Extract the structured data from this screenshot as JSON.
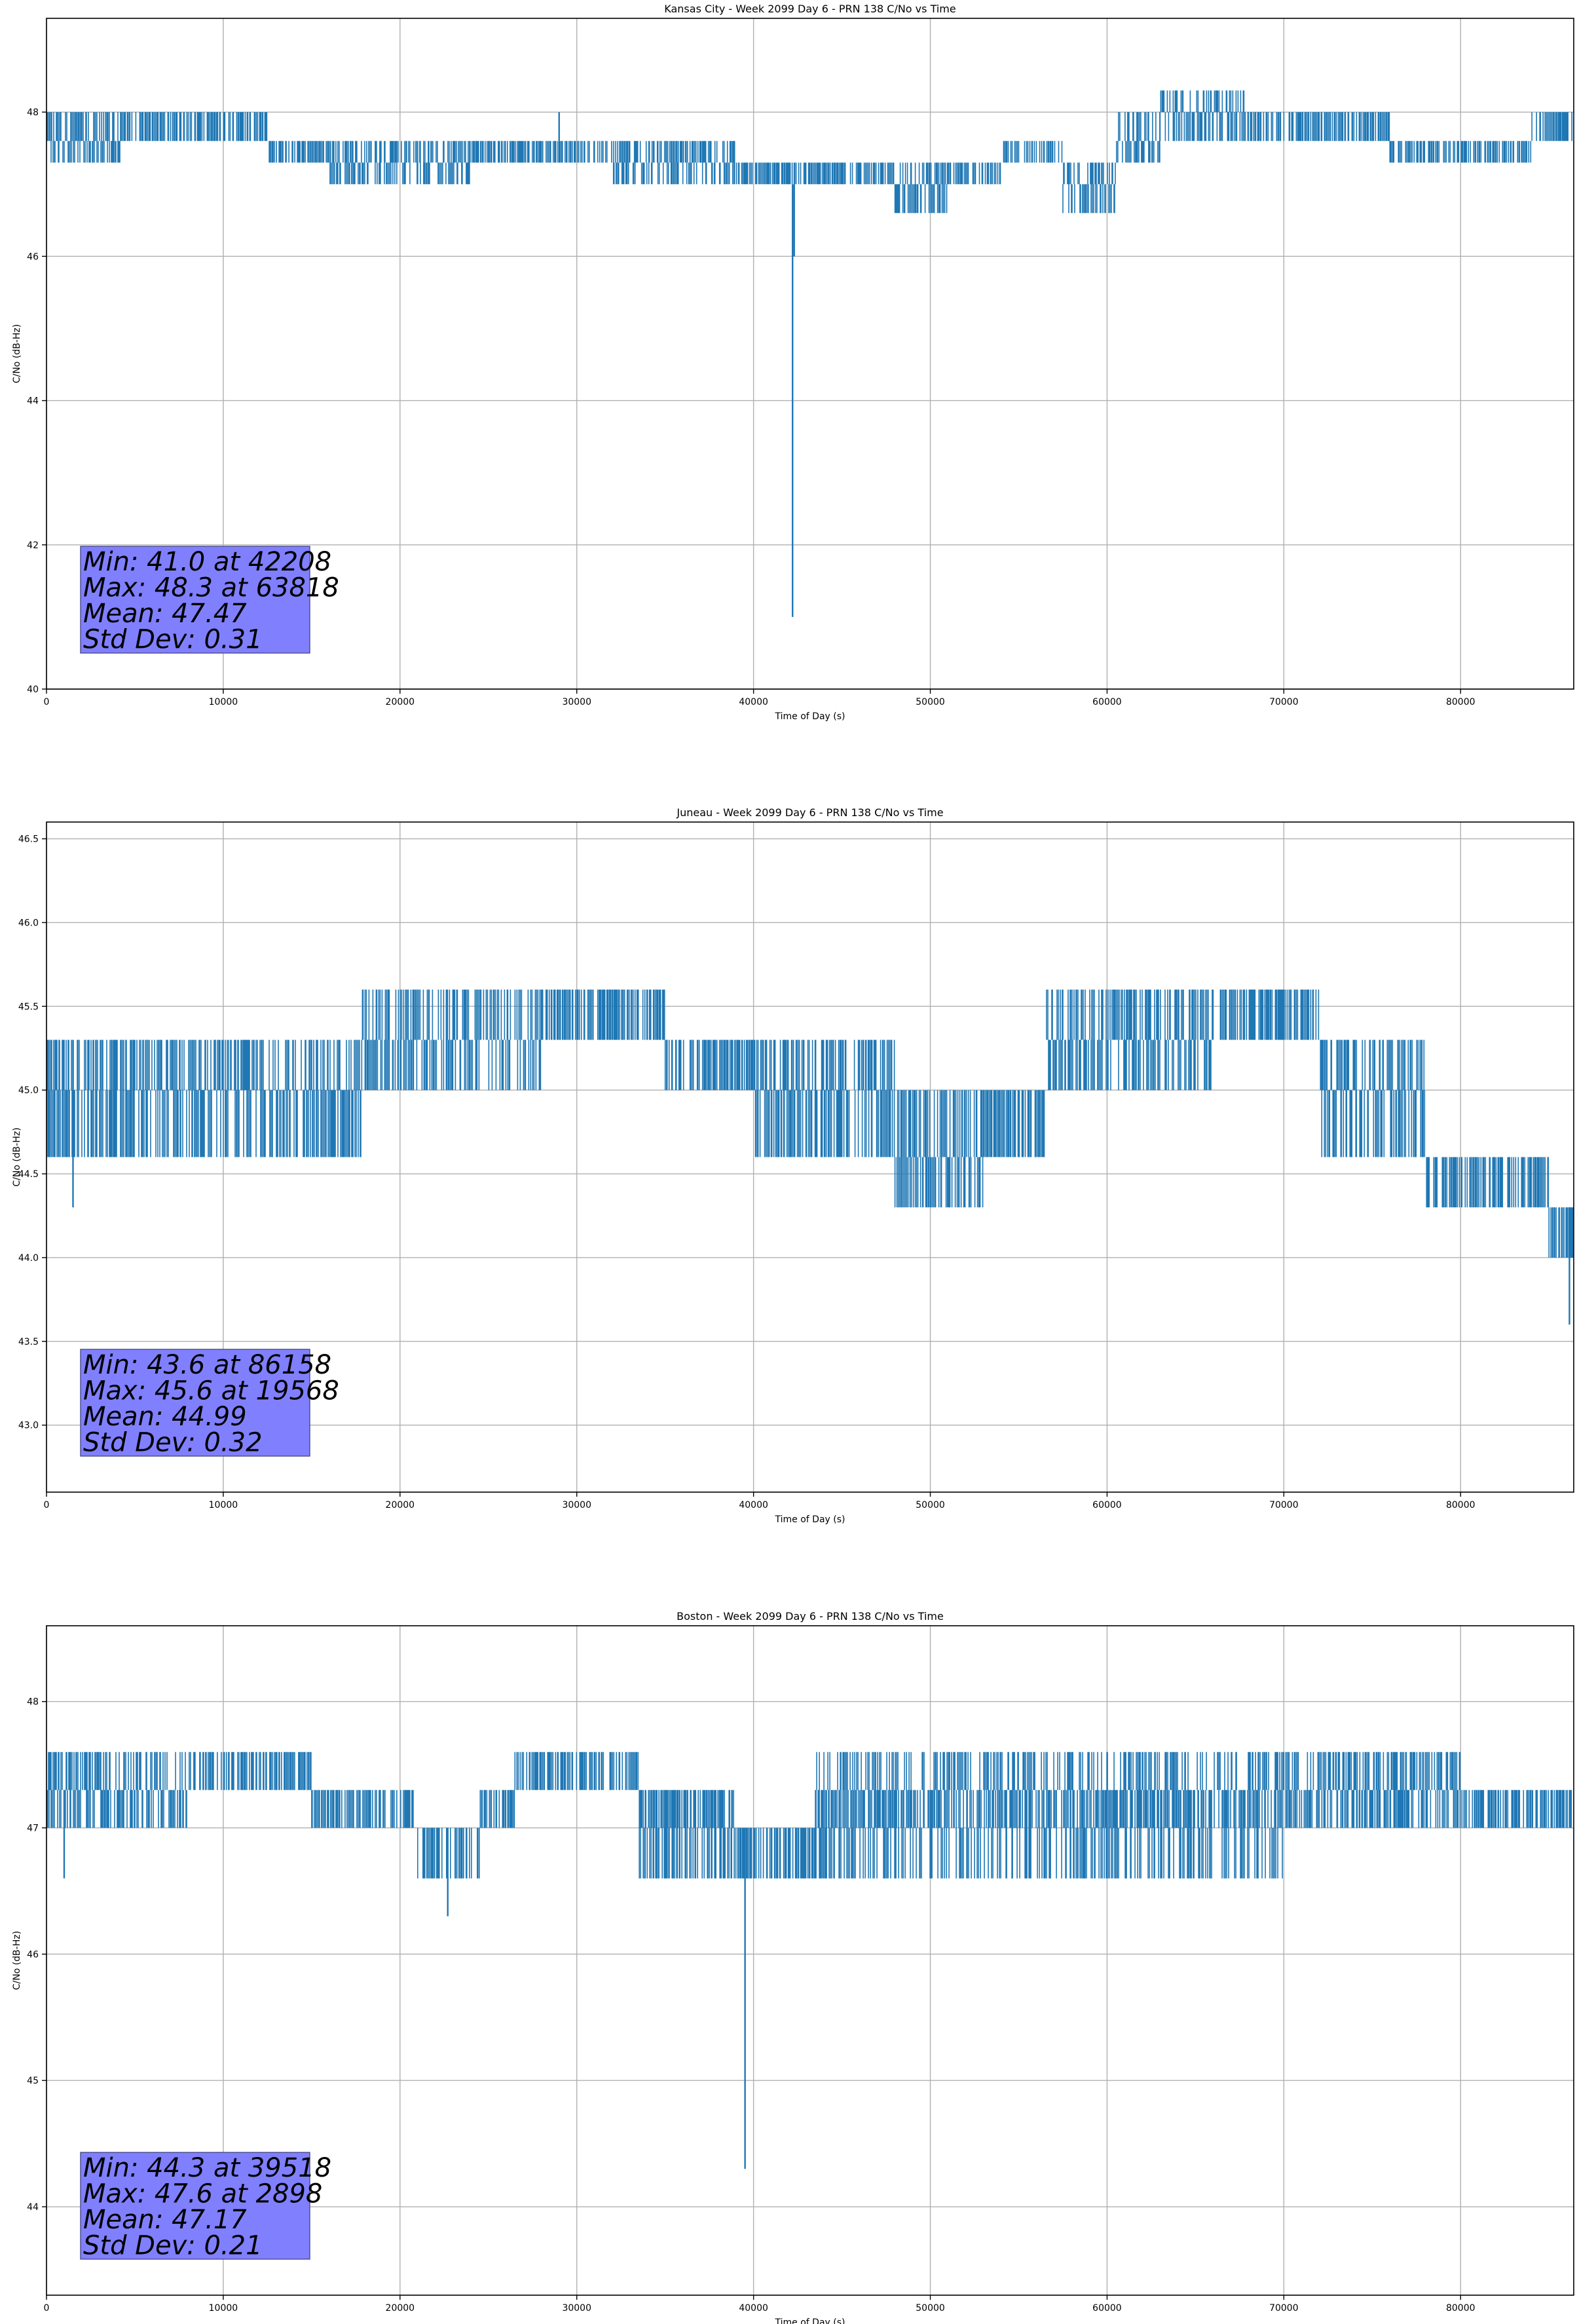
{
  "chart_data": [
    {
      "type": "line",
      "title": "Kansas City - Week 2099 Day 6 - PRN 138 C/No vs Time",
      "xlabel": "Time of Day (s)",
      "ylabel": "C/No (dB-Hz)",
      "xlim": [
        0,
        86400
      ],
      "ylim": [
        40,
        49.3
      ],
      "xticks": [
        0,
        10000,
        20000,
        30000,
        40000,
        50000,
        60000,
        70000,
        80000
      ],
      "yticks": [
        40,
        42,
        44,
        46,
        48
      ],
      "ytick_labels": [
        "40",
        "42",
        "44",
        "46",
        "48"
      ],
      "grid": true,
      "color": "#1f77b4",
      "series": [
        {
          "segments": [
            {
              "start": 0,
              "end": 4200,
              "levels": [
                47.3,
                47.6,
                48.0
              ],
              "base": 47.6
            },
            {
              "start": 4200,
              "end": 12600,
              "levels": [
                47.6,
                48.0
              ],
              "base": 48.0
            },
            {
              "start": 12600,
              "end": 16000,
              "levels": [
                47.3,
                47.6
              ],
              "base": 47.6
            },
            {
              "start": 16000,
              "end": 24000,
              "levels": [
                47.0,
                47.3,
                47.6
              ],
              "base": 47.3
            },
            {
              "start": 24000,
              "end": 32000,
              "levels": [
                47.3,
                47.6
              ],
              "base": 47.6
            },
            {
              "start": 32000,
              "end": 39000,
              "levels": [
                47.0,
                47.3,
                47.6
              ],
              "base": 47.3
            },
            {
              "start": 39000,
              "end": 48000,
              "levels": [
                47.0,
                47.3
              ],
              "base": 47.0
            },
            {
              "start": 48000,
              "end": 51000,
              "levels": [
                46.6,
                47.0,
                47.3
              ],
              "base": 47.0
            },
            {
              "start": 51000,
              "end": 54000,
              "levels": [
                47.0,
                47.3
              ],
              "base": 47.3
            },
            {
              "start": 54000,
              "end": 57500,
              "levels": [
                47.3,
                47.6
              ],
              "base": 47.6
            },
            {
              "start": 57500,
              "end": 60500,
              "levels": [
                46.6,
                47.0,
                47.3
              ],
              "base": 47.0
            },
            {
              "start": 60500,
              "end": 63000,
              "levels": [
                47.3,
                47.6,
                48.0
              ],
              "base": 47.6
            },
            {
              "start": 63000,
              "end": 68000,
              "levels": [
                47.6,
                48.0,
                48.3
              ],
              "base": 48.0
            },
            {
              "start": 68000,
              "end": 76000,
              "levels": [
                47.6,
                48.0
              ],
              "base": 48.0
            },
            {
              "start": 76000,
              "end": 84000,
              "levels": [
                47.3,
                47.6
              ],
              "base": 47.6
            },
            {
              "start": 84000,
              "end": 86400,
              "levels": [
                47.6,
                48.0
              ],
              "base": 48.0
            }
          ],
          "dips": [
            [
              42208,
              41.0
            ],
            [
              42300,
              46.0
            ]
          ],
          "peaks": [
            [
              29000,
              48.0
            ]
          ]
        }
      ],
      "stats": {
        "min_label": "Min: 41.0 at 42208",
        "max_label": "Max: 48.3 at 63818",
        "mean_label": "Mean: 47.47",
        "std_label": "Std Dev: 0.31"
      }
    },
    {
      "type": "line",
      "title": "Juneau - Week 2099 Day 6 - PRN 138 C/No vs Time",
      "xlabel": "Time of Day (s)",
      "ylabel": "C/No (dB-Hz)",
      "xlim": [
        0,
        86400
      ],
      "ylim": [
        42.6,
        46.6
      ],
      "xticks": [
        0,
        10000,
        20000,
        30000,
        40000,
        50000,
        60000,
        70000,
        80000
      ],
      "yticks": [
        43.0,
        43.5,
        44.0,
        44.5,
        45.0,
        45.5,
        46.0,
        46.5
      ],
      "ytick_labels": [
        "43.0",
        "43.5",
        "44.0",
        "44.5",
        "45.0",
        "45.5",
        "46.0",
        "46.5"
      ],
      "grid": true,
      "color": "#1f77b4",
      "series": [
        {
          "segments": [
            {
              "start": 0,
              "end": 5000,
              "levels": [
                44.6,
                45.0,
                45.3
              ],
              "base": 44.6
            },
            {
              "start": 5000,
              "end": 17800,
              "levels": [
                44.6,
                45.0,
                45.3
              ],
              "base": 45.0
            },
            {
              "start": 17800,
              "end": 28000,
              "levels": [
                45.0,
                45.3,
                45.6
              ],
              "base": 45.3
            },
            {
              "start": 28000,
              "end": 35000,
              "levels": [
                45.3,
                45.6
              ],
              "base": 45.6
            },
            {
              "start": 35000,
              "end": 40000,
              "levels": [
                45.0,
                45.3
              ],
              "base": 45.3
            },
            {
              "start": 40000,
              "end": 48000,
              "levels": [
                44.6,
                45.0,
                45.3
              ],
              "base": 45.0
            },
            {
              "start": 48000,
              "end": 53000,
              "levels": [
                44.3,
                44.6,
                45.0
              ],
              "base": 44.6
            },
            {
              "start": 53000,
              "end": 56500,
              "levels": [
                44.6,
                45.0
              ],
              "base": 45.0
            },
            {
              "start": 56500,
              "end": 66000,
              "levels": [
                45.0,
                45.3,
                45.6
              ],
              "base": 45.3
            },
            {
              "start": 66000,
              "end": 72000,
              "levels": [
                45.3,
                45.6
              ],
              "base": 45.6
            },
            {
              "start": 72000,
              "end": 78000,
              "levels": [
                44.6,
                45.0,
                45.3
              ],
              "base": 45.0
            },
            {
              "start": 78000,
              "end": 85000,
              "levels": [
                44.3,
                44.6
              ],
              "base": 44.6
            },
            {
              "start": 85000,
              "end": 86400,
              "levels": [
                44.0,
                44.3
              ],
              "base": 44.3
            }
          ],
          "dips": [
            [
              1500,
              44.3
            ],
            [
              86158,
              43.6
            ]
          ],
          "peaks": []
        }
      ],
      "stats": {
        "min_label": "Min: 43.6 at 86158",
        "max_label": "Max: 45.6 at 19568",
        "mean_label": "Mean: 44.99",
        "std_label": "Std Dev: 0.32"
      }
    },
    {
      "type": "line",
      "title": "Boston - Week 2099 Day 6 - PRN 138 C/No vs Time",
      "xlabel": "Time of Day (s)",
      "ylabel": "C/No (dB-Hz)",
      "xlim": [
        0,
        86400
      ],
      "ylim": [
        43.3,
        48.6
      ],
      "xticks": [
        0,
        10000,
        20000,
        30000,
        40000,
        50000,
        60000,
        70000,
        80000
      ],
      "yticks": [
        44,
        45,
        46,
        47,
        48
      ],
      "ytick_labels": [
        "44",
        "45",
        "46",
        "47",
        "48"
      ],
      "grid": true,
      "color": "#1f77b4",
      "series": [
        {
          "segments": [
            {
              "start": 0,
              "end": 8000,
              "levels": [
                47.0,
                47.3,
                47.6
              ],
              "base": 47.3
            },
            {
              "start": 8000,
              "end": 15000,
              "levels": [
                47.3,
                47.6
              ],
              "base": 47.6
            },
            {
              "start": 15000,
              "end": 21000,
              "levels": [
                47.0,
                47.3
              ],
              "base": 47.3
            },
            {
              "start": 21000,
              "end": 24500,
              "levels": [
                46.6,
                47.0
              ],
              "base": 47.0
            },
            {
              "start": 24500,
              "end": 26500,
              "levels": [
                47.0,
                47.3
              ],
              "base": 47.3
            },
            {
              "start": 26500,
              "end": 33500,
              "levels": [
                47.3,
                47.6
              ],
              "base": 47.6
            },
            {
              "start": 33500,
              "end": 39000,
              "levels": [
                46.6,
                47.0,
                47.3
              ],
              "base": 47.3
            },
            {
              "start": 39000,
              "end": 43500,
              "levels": [
                46.6,
                47.0
              ],
              "base": 47.0
            },
            {
              "start": 43500,
              "end": 70000,
              "levels": [
                46.6,
                47.0,
                47.3,
                47.6
              ],
              "base": 47.3
            },
            {
              "start": 70000,
              "end": 80000,
              "levels": [
                47.0,
                47.3,
                47.6
              ],
              "base": 47.3
            },
            {
              "start": 80000,
              "end": 86400,
              "levels": [
                47.0,
                47.3
              ],
              "base": 47.3
            }
          ],
          "dips": [
            [
              39518,
              44.3
            ],
            [
              22700,
              46.3
            ],
            [
              1000,
              46.6
            ]
          ],
          "peaks": [
            [
              2898,
              47.6
            ]
          ]
        }
      ],
      "stats": {
        "min_label": "Min: 44.3 at 39518",
        "max_label": "Max: 47.6 at 2898",
        "mean_label": "Mean: 47.17",
        "std_label": "Std Dev: 0.21"
      }
    }
  ]
}
